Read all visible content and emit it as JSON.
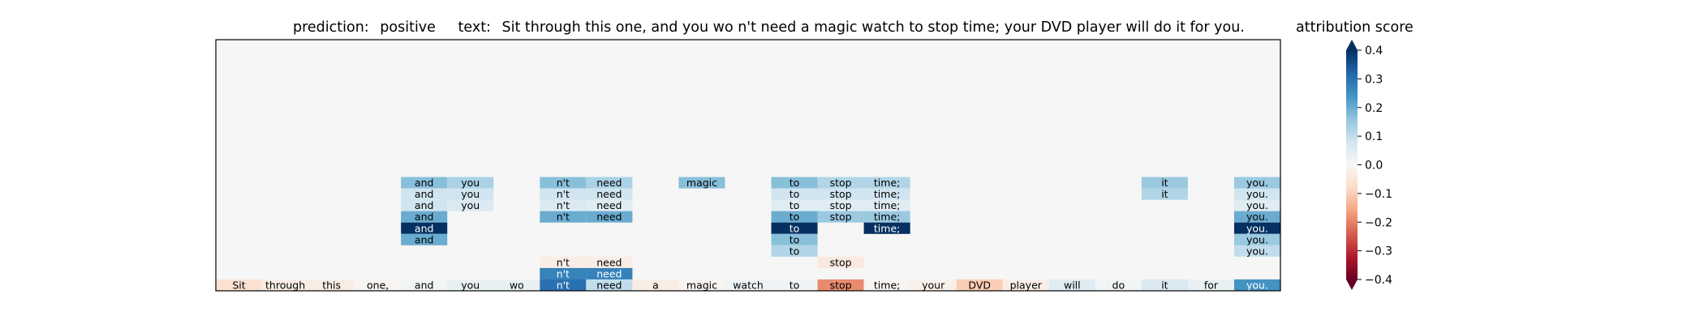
{
  "chart_data": {
    "type": "heatmap",
    "title": {
      "prediction_label": "prediction:",
      "prediction_value": "positive",
      "text_label": "text:",
      "text_value": "Sit through this one, and you wo n't need a magic watch to stop time; your DVD player will do it for you."
    },
    "tokens": [
      "Sit",
      "through",
      "this",
      "one,",
      "and",
      "you",
      "wo",
      "n't",
      "need",
      "a",
      "magic",
      "watch",
      "to",
      "stop",
      "time;",
      "your",
      "DVD",
      "player",
      "will",
      "do",
      "it",
      "for",
      "you."
    ],
    "rows": [
      {
        "row": 9,
        "cells": [
          [
            4,
            "and",
            0.17
          ],
          [
            5,
            "you",
            0.13
          ],
          [
            7,
            "n't",
            0.17
          ],
          [
            8,
            "need",
            0.13
          ],
          [
            10,
            "magic",
            0.17
          ],
          [
            12,
            "to",
            0.17
          ],
          [
            13,
            "stop",
            0.12
          ],
          [
            14,
            "time;",
            0.12
          ],
          [
            20,
            "it",
            0.15
          ],
          [
            22,
            "you.",
            0.15
          ]
        ]
      },
      {
        "row": 8,
        "cells": [
          [
            4,
            "and",
            0.08
          ],
          [
            5,
            "you",
            0.08
          ],
          [
            7,
            "n't",
            0.08
          ],
          [
            8,
            "need",
            0.08
          ],
          [
            12,
            "to",
            0.08
          ],
          [
            13,
            "stop",
            0.08
          ],
          [
            14,
            "time;",
            0.08
          ],
          [
            20,
            "it",
            0.12
          ],
          [
            22,
            "you.",
            0.08
          ]
        ]
      },
      {
        "row": 7,
        "cells": [
          [
            4,
            "and",
            0.08
          ],
          [
            5,
            "you",
            0.06
          ],
          [
            7,
            "n't",
            0.06
          ],
          [
            8,
            "need",
            0.05
          ],
          [
            12,
            "to",
            0.05
          ],
          [
            13,
            "stop",
            0.05
          ],
          [
            14,
            "time;",
            0.05
          ],
          [
            22,
            "you.",
            0.05
          ]
        ]
      },
      {
        "row": 6,
        "cells": [
          [
            4,
            "and",
            0.2
          ],
          [
            7,
            "n't",
            0.2
          ],
          [
            8,
            "need",
            0.2
          ],
          [
            12,
            "to",
            0.2
          ],
          [
            13,
            "stop",
            0.15
          ],
          [
            14,
            "time;",
            0.15
          ],
          [
            22,
            "you.",
            0.2
          ]
        ]
      },
      {
        "row": 5,
        "cells": [
          [
            4,
            "and",
            0.4
          ],
          [
            12,
            "to",
            0.4
          ],
          [
            14,
            "time;",
            0.4
          ],
          [
            22,
            "you.",
            0.4
          ]
        ]
      },
      {
        "row": 4,
        "cells": [
          [
            4,
            "and",
            0.2
          ],
          [
            12,
            "to",
            0.17
          ],
          [
            22,
            "you.",
            0.15
          ]
        ]
      },
      {
        "row": 3,
        "cells": [
          [
            12,
            "to",
            0.12
          ],
          [
            22,
            "you.",
            0.1
          ]
        ]
      },
      {
        "row": 2,
        "cells": [
          [
            7,
            "n't",
            -0.03
          ],
          [
            8,
            "need",
            -0.03
          ],
          [
            13,
            "stop",
            -0.04
          ]
        ]
      },
      {
        "row": 1,
        "cells": [
          [
            7,
            "n't",
            0.27
          ],
          [
            8,
            "need",
            0.27
          ]
        ]
      },
      {
        "row": 0,
        "cells": [
          [
            0,
            "Sit",
            -0.06
          ],
          [
            1,
            "through",
            -0.03
          ],
          [
            2,
            "this",
            -0.03
          ],
          [
            3,
            "one,",
            -0.01
          ],
          [
            4,
            "and",
            0.01
          ],
          [
            5,
            "you",
            0.03
          ],
          [
            6,
            "wo",
            0.03
          ],
          [
            7,
            "n't",
            0.3
          ],
          [
            8,
            "need",
            0.1
          ],
          [
            9,
            "a",
            -0.03
          ],
          [
            10,
            "magic",
            -0.01
          ],
          [
            11,
            "watch",
            0.02
          ],
          [
            12,
            "to",
            0.02
          ],
          [
            13,
            "stop",
            -0.19
          ],
          [
            14,
            "time;",
            -0.01
          ],
          [
            15,
            "your",
            -0.02
          ],
          [
            16,
            "DVD",
            -0.1
          ],
          [
            17,
            "player",
            -0.03
          ],
          [
            18,
            "will",
            0.05
          ],
          [
            19,
            "do",
            0.01
          ],
          [
            20,
            "it",
            0.06
          ],
          [
            21,
            "for",
            0.03
          ],
          [
            22,
            "you.",
            0.24
          ]
        ]
      }
    ],
    "n_rows": 22,
    "colorbar": {
      "label": "attribution score",
      "ticks": [
        "0.4",
        "0.3",
        "0.2",
        "0.1",
        "0.0",
        "−0.1",
        "−0.2",
        "−0.3",
        "−0.4"
      ],
      "tick_values": [
        0.4,
        0.3,
        0.2,
        0.1,
        0.0,
        -0.1,
        -0.2,
        -0.3,
        -0.4
      ],
      "range": [
        -0.4,
        0.4
      ],
      "colormap": "RdBu"
    }
  }
}
